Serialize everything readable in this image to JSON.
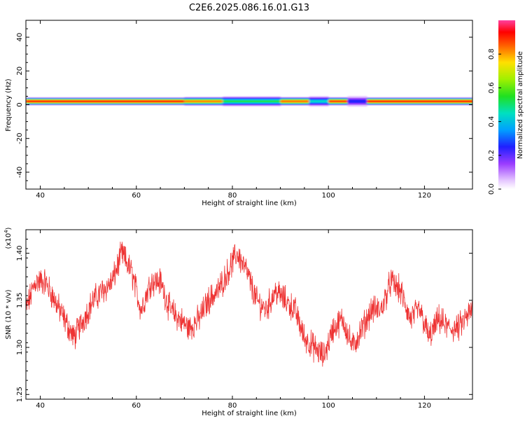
{
  "title": "C2E6.2025.086.16.01.G13",
  "chart_data": [
    {
      "type": "heatmap",
      "xlabel": "Height of straight line (km)",
      "ylabel": "Frequency (Hz)",
      "xlim": [
        37,
        130
      ],
      "ylim": [
        -50,
        50
      ],
      "xticks": [
        40,
        60,
        80,
        100,
        120
      ],
      "yticks": [
        40,
        20,
        0,
        -20,
        -40
      ],
      "colorbar": {
        "label": "Normalized spectral amplitude",
        "range": [
          0,
          1
        ],
        "ticks": [
          0.0,
          0.2,
          0.4,
          0.6,
          0.8
        ]
      },
      "band": {
        "center_freq_hz": 2,
        "segments": [
          {
            "x": [
              37,
              70
            ],
            "peak_amplitude": 1.0
          },
          {
            "x": [
              70,
              78
            ],
            "peak_amplitude": 0.85
          },
          {
            "x": [
              78,
              90
            ],
            "peak_amplitude": 0.55
          },
          {
            "x": [
              90,
              96
            ],
            "peak_amplitude": 0.9
          },
          {
            "x": [
              96,
              100
            ],
            "peak_amplitude": 0.45
          },
          {
            "x": [
              100,
              104
            ],
            "peak_amplitude": 0.95
          },
          {
            "x": [
              104,
              108
            ],
            "peak_amplitude": 0.3
          },
          {
            "x": [
              108,
              130
            ],
            "peak_amplitude": 1.0
          }
        ]
      }
    },
    {
      "type": "line",
      "xlabel": "Height of straight line (km)",
      "ylabel": "SNR (10 * v/v)",
      "scale_label": "(x10",
      "scale_exp": "4",
      "xlim": [
        37,
        130
      ],
      "ylim": [
        1.245,
        1.425
      ],
      "xticks": [
        40,
        60,
        80,
        100,
        120
      ],
      "yticks": [
        1.25,
        1.3,
        1.35,
        1.4
      ],
      "color": "#ee3333",
      "x": [
        37,
        39,
        41,
        43,
        45,
        47,
        49,
        51,
        53,
        55,
        57,
        59,
        61,
        63,
        65,
        67,
        69,
        71,
        73,
        75,
        77,
        79,
        81,
        83,
        85,
        87,
        89,
        91,
        93,
        95,
        97,
        99,
        101,
        103,
        105,
        107,
        109,
        111,
        113,
        115,
        117,
        119,
        121,
        123,
        125,
        127,
        130
      ],
      "y": [
        1.34,
        1.37,
        1.37,
        1.35,
        1.33,
        1.31,
        1.33,
        1.35,
        1.36,
        1.37,
        1.4,
        1.38,
        1.34,
        1.37,
        1.37,
        1.34,
        1.33,
        1.32,
        1.33,
        1.35,
        1.36,
        1.38,
        1.4,
        1.38,
        1.35,
        1.34,
        1.36,
        1.35,
        1.34,
        1.31,
        1.3,
        1.29,
        1.32,
        1.33,
        1.3,
        1.32,
        1.34,
        1.34,
        1.37,
        1.36,
        1.33,
        1.34,
        1.31,
        1.33,
        1.32,
        1.32,
        1.34
      ],
      "noise_amplitude": 0.012
    }
  ]
}
